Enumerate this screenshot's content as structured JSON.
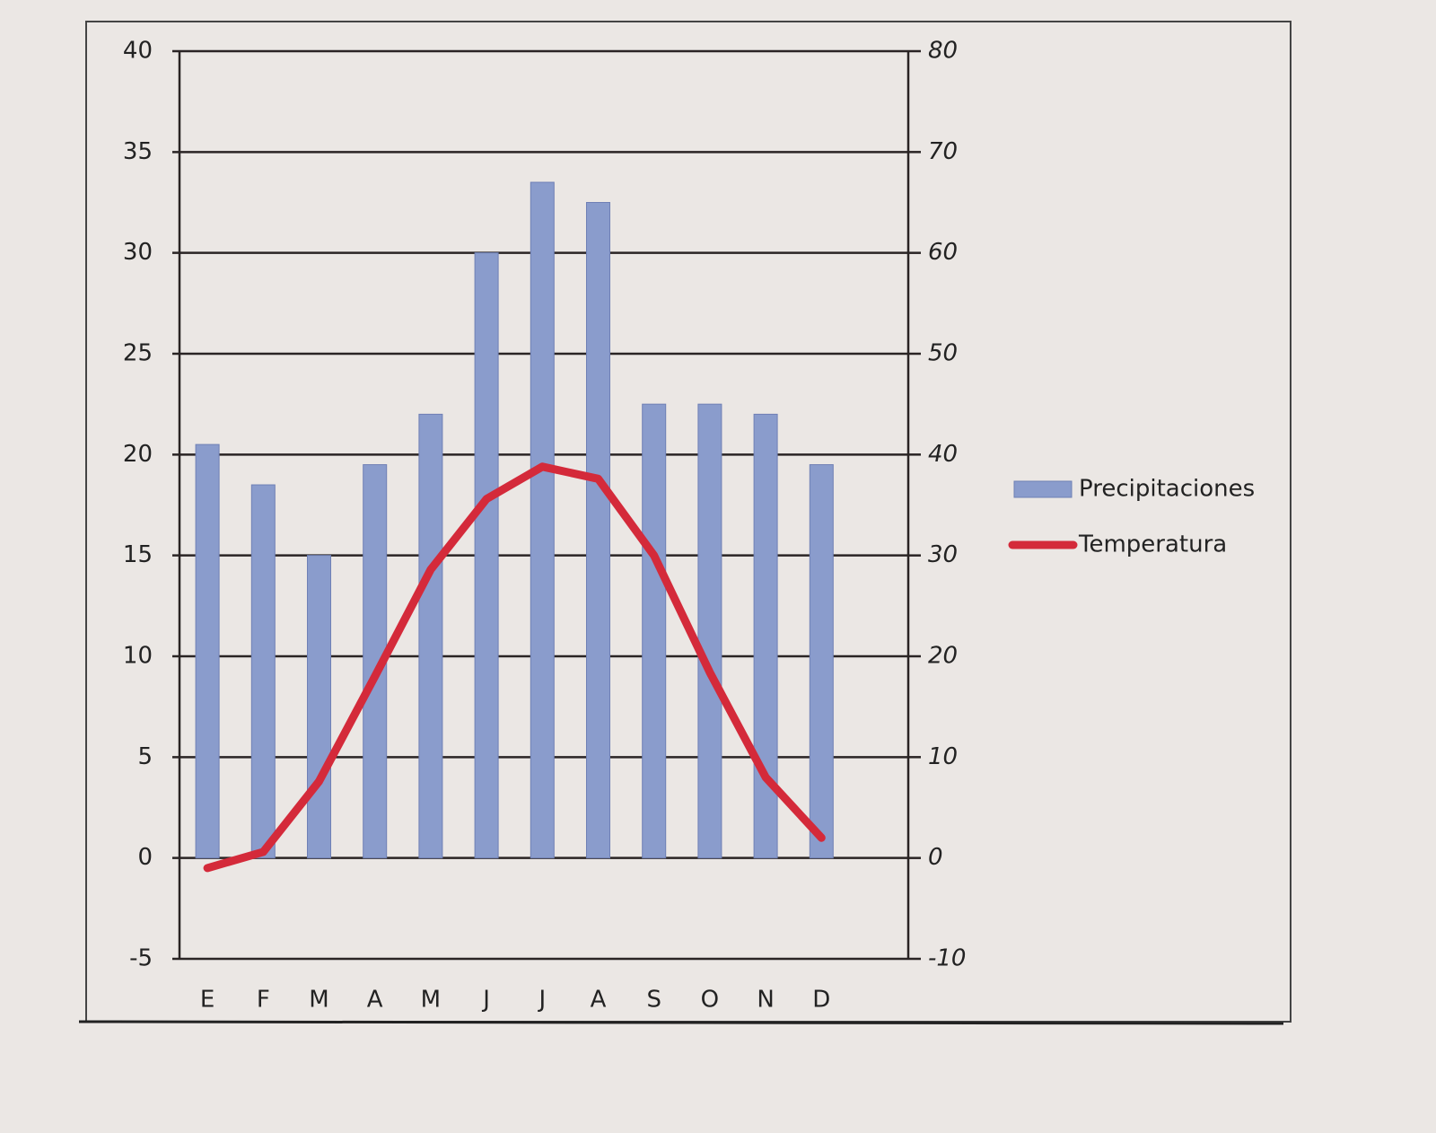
{
  "chart_data": {
    "type": "bar-line",
    "categories": [
      "E",
      "F",
      "M",
      "A",
      "M",
      "J",
      "J",
      "A",
      "S",
      "O",
      "N",
      "D"
    ],
    "series": [
      {
        "name": "Precipitaciones",
        "type": "bar",
        "axis": "y2",
        "color": "#8a9ccc",
        "values": [
          41,
          37,
          30,
          39,
          44,
          60,
          67,
          65,
          45,
          45,
          44,
          39
        ]
      },
      {
        "name": "Temperatura",
        "type": "line",
        "axis": "y",
        "color": "#d42a3a",
        "values": [
          -0.5,
          0.3,
          3.8,
          9,
          14.3,
          17.8,
          19.4,
          18.8,
          15,
          9.2,
          4,
          1
        ]
      }
    ],
    "ylim": [
      -5,
      40
    ],
    "yticks": [
      -5,
      0,
      5,
      10,
      15,
      20,
      25,
      30,
      35,
      40
    ],
    "y2lim": [
      -10,
      80
    ],
    "y2ticks": [
      -10,
      0,
      10,
      20,
      30,
      40,
      50,
      60,
      70,
      80
    ],
    "grid": true,
    "legend": "right"
  }
}
